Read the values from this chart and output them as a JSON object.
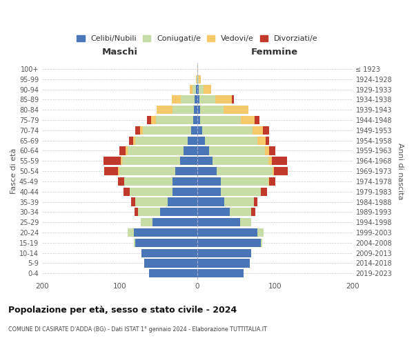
{
  "age_groups": [
    "0-4",
    "5-9",
    "10-14",
    "15-19",
    "20-24",
    "25-29",
    "30-34",
    "35-39",
    "40-44",
    "45-49",
    "50-54",
    "55-59",
    "60-64",
    "65-69",
    "70-74",
    "75-79",
    "80-84",
    "85-89",
    "90-94",
    "95-99",
    "100+"
  ],
  "birth_years": [
    "2019-2023",
    "2014-2018",
    "2009-2013",
    "2004-2008",
    "1999-2003",
    "1994-1998",
    "1989-1993",
    "1984-1988",
    "1979-1983",
    "1974-1978",
    "1969-1973",
    "1964-1968",
    "1959-1963",
    "1954-1958",
    "1949-1953",
    "1944-1948",
    "1939-1943",
    "1934-1938",
    "1929-1933",
    "1924-1928",
    "≤ 1923"
  ],
  "m_cel": [
    62,
    68,
    72,
    80,
    82,
    58,
    48,
    38,
    32,
    32,
    28,
    22,
    18,
    12,
    8,
    5,
    4,
    3,
    2,
    0,
    0
  ],
  "m_con": [
    0,
    0,
    0,
    2,
    8,
    15,
    28,
    42,
    55,
    62,
    72,
    75,
    72,
    68,
    62,
    48,
    28,
    18,
    4,
    1,
    0
  ],
  "m_ved": [
    0,
    0,
    0,
    0,
    0,
    0,
    0,
    0,
    0,
    0,
    2,
    2,
    2,
    3,
    4,
    6,
    20,
    12,
    4,
    1,
    0
  ],
  "m_div": [
    0,
    0,
    0,
    0,
    0,
    0,
    5,
    5,
    8,
    8,
    18,
    22,
    8,
    5,
    6,
    6,
    0,
    0,
    0,
    0,
    0
  ],
  "f_nub": [
    60,
    68,
    70,
    82,
    78,
    55,
    42,
    35,
    30,
    30,
    25,
    20,
    15,
    10,
    6,
    4,
    4,
    3,
    2,
    0,
    0
  ],
  "f_con": [
    0,
    0,
    0,
    2,
    8,
    15,
    28,
    38,
    52,
    62,
    72,
    72,
    72,
    68,
    65,
    52,
    30,
    20,
    6,
    2,
    0
  ],
  "f_ved": [
    0,
    0,
    0,
    0,
    0,
    0,
    0,
    0,
    0,
    1,
    2,
    4,
    6,
    10,
    14,
    18,
    32,
    22,
    10,
    3,
    1
  ],
  "f_div": [
    0,
    0,
    0,
    0,
    0,
    0,
    5,
    5,
    8,
    8,
    18,
    20,
    8,
    5,
    8,
    6,
    0,
    2,
    0,
    0,
    0
  ],
  "colors": {
    "celibi": "#4a76b8",
    "coniugati": "#c8dca5",
    "vedovi": "#f5c96a",
    "divorziati": "#c0392b"
  },
  "title": "Popolazione per età, sesso e stato civile - 2024",
  "subtitle": "COMUNE DI CASIRATE D'ADDA (BG) - Dati ISTAT 1° gennaio 2024 - Elaborazione TUTTITALIA.IT",
  "xlabel_left": "Maschi",
  "xlabel_right": "Femmine",
  "ylabel": "Fasce di età",
  "ylabel_right": "Anni di nascita",
  "xlim": 200,
  "bg_color": "#ffffff",
  "grid_color": "#cccccc",
  "legend_labels": [
    "Celibi/Nubili",
    "Coniugati/e",
    "Vedovi/e",
    "Divorziati/e"
  ]
}
